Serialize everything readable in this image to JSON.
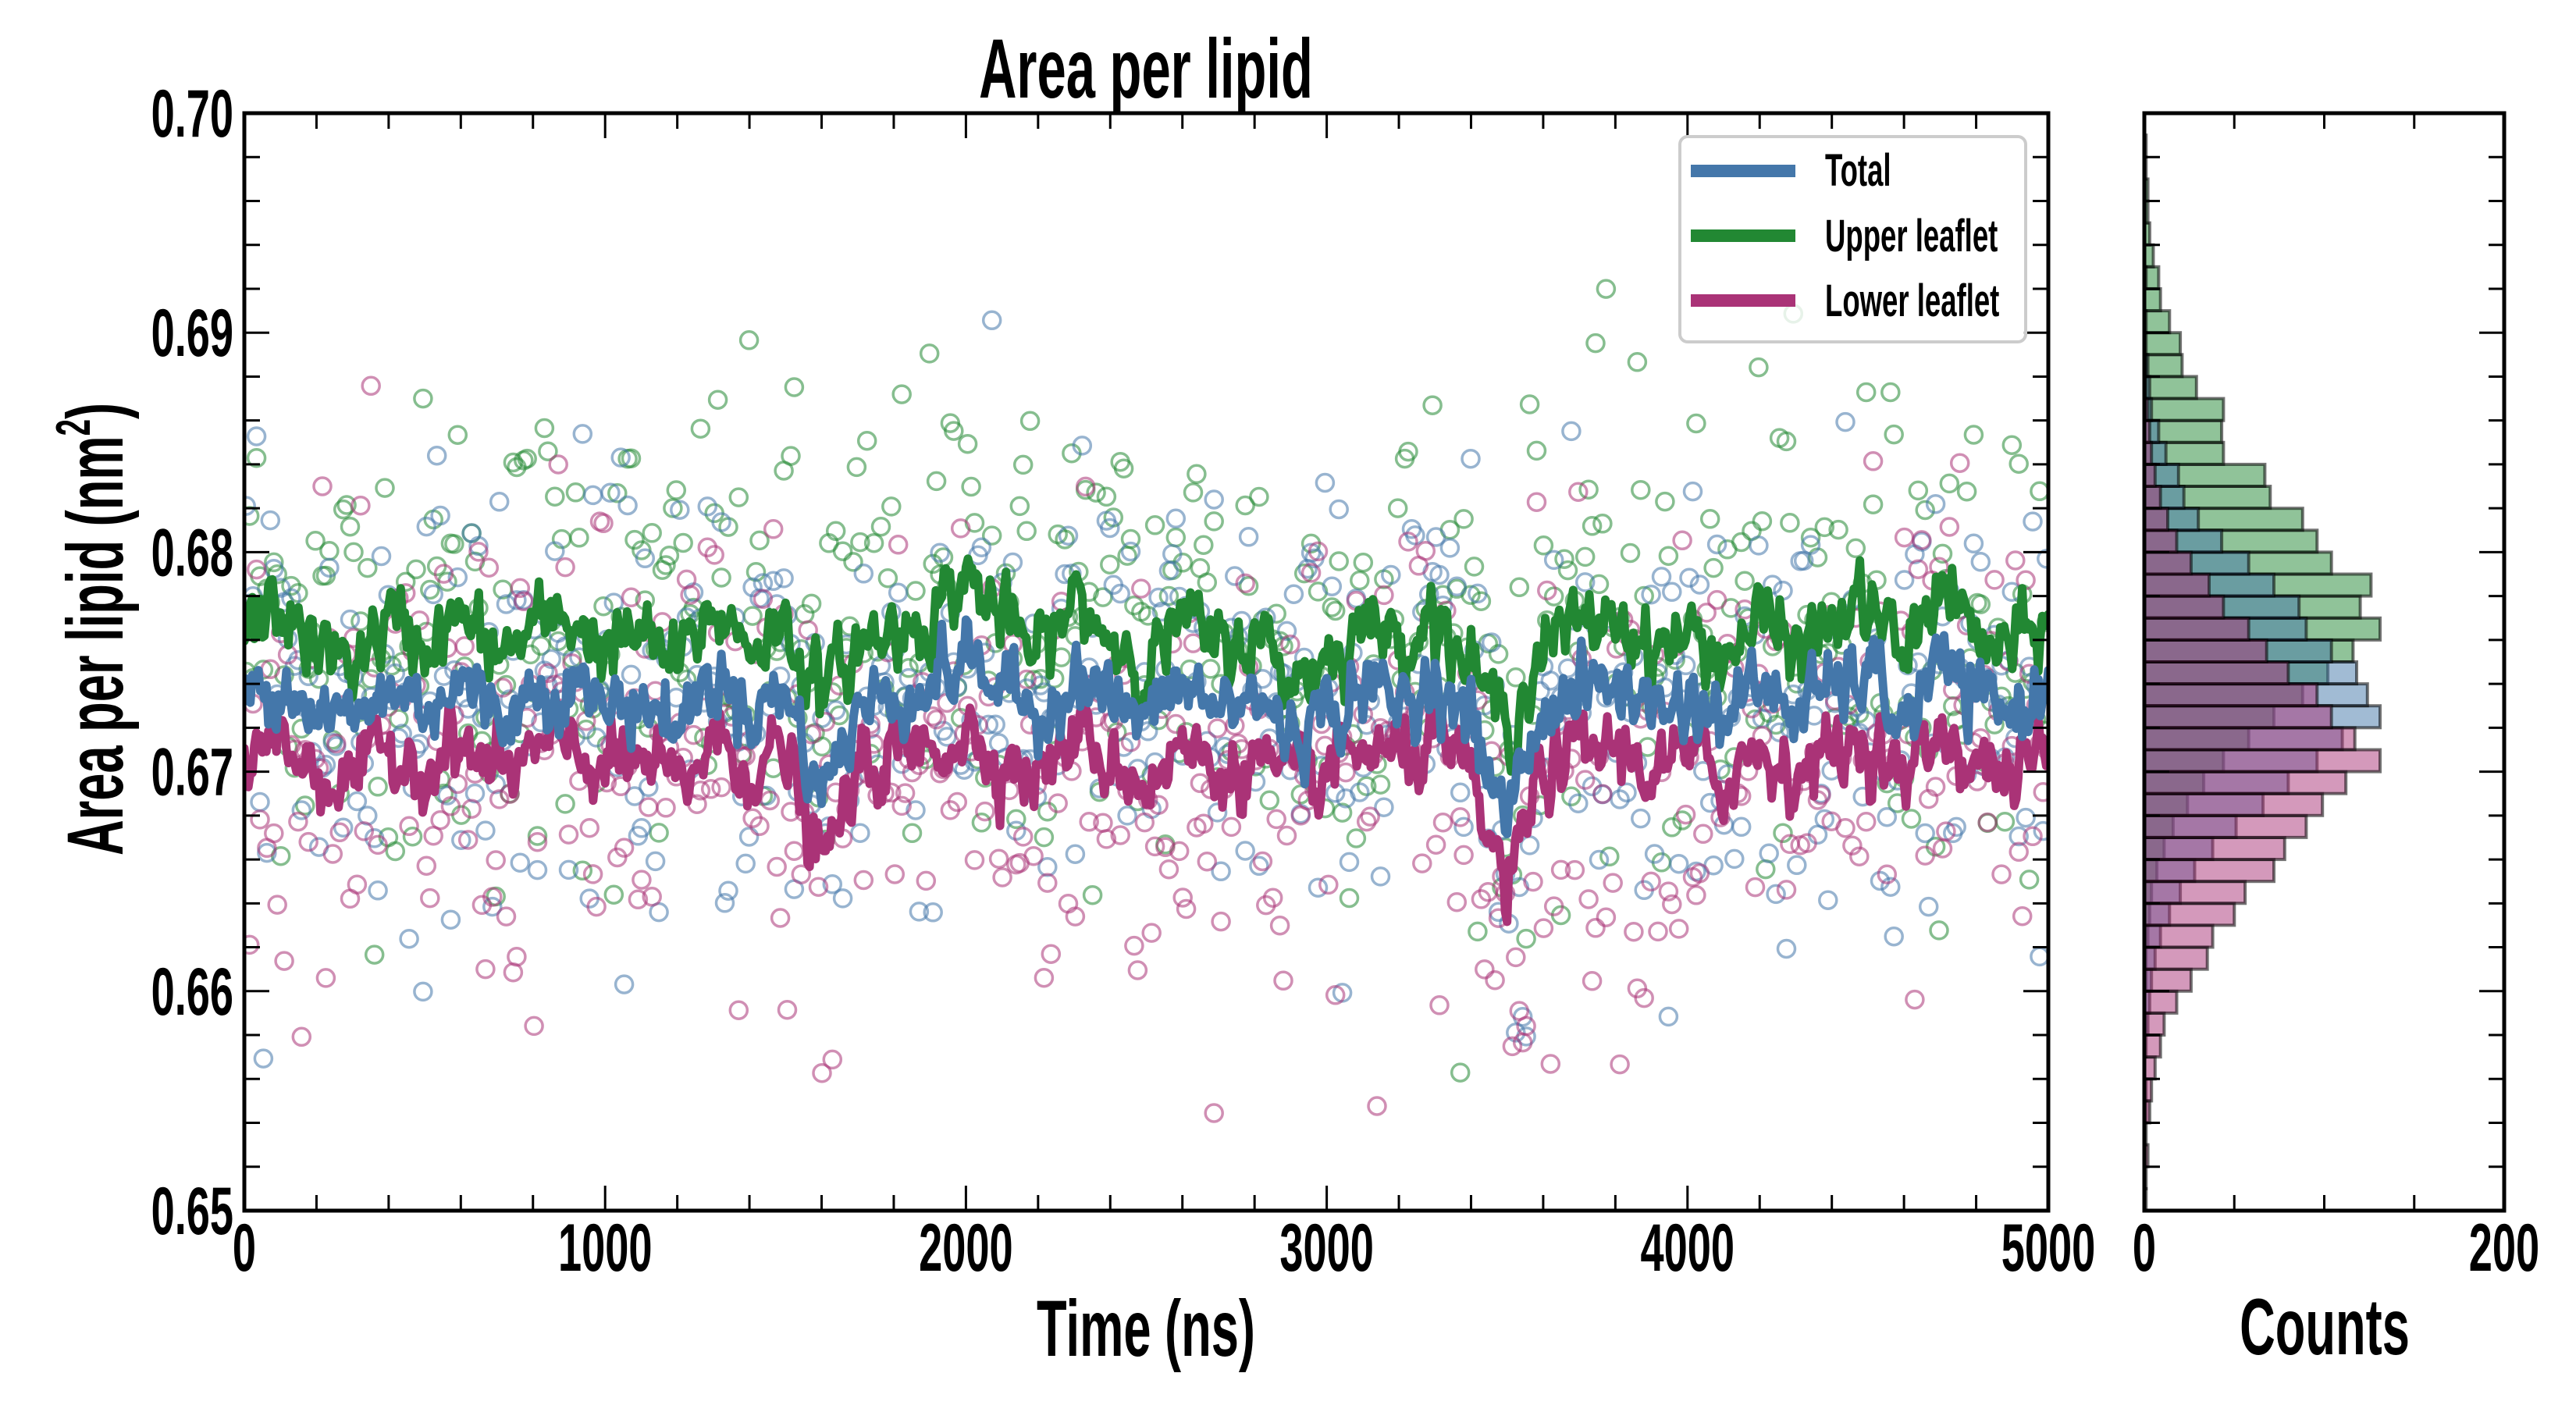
{
  "chart_data": [
    {
      "type": "line",
      "title": "Area per lipid",
      "xlabel": "Time (ns)",
      "ylabel": "Area per lipid (nm",
      "ylabel_superscript": "2",
      "ylabel_suffix": ")",
      "xlim": [
        0,
        5000
      ],
      "ylim": [
        0.65,
        0.7
      ],
      "x_major_ticks": [
        0,
        1000,
        2000,
        3000,
        4000,
        5000
      ],
      "x_tick_labels": [
        "0",
        "1000",
        "2000",
        "3000",
        "4000",
        "5000"
      ],
      "x_minor_step": 200,
      "y_major_ticks": [
        0.65,
        0.66,
        0.67,
        0.68,
        0.69,
        0.7
      ],
      "y_tick_labels": [
        "0.65",
        "0.66",
        "0.67",
        "0.68",
        "0.69",
        "0.70"
      ],
      "y_minor_step": 0.002,
      "grid": false,
      "legend": {
        "placement": "top-right",
        "entries": [
          "Total",
          "Upper leaflet",
          "Lower leaflet"
        ]
      },
      "x": [
        0,
        100,
        200,
        300,
        400,
        500,
        600,
        700,
        800,
        900,
        1000,
        1100,
        1200,
        1300,
        1400,
        1500,
        1600,
        1700,
        1800,
        1900,
        2000,
        2100,
        2200,
        2300,
        2400,
        2500,
        2600,
        2700,
        2800,
        2900,
        3000,
        3100,
        3200,
        3300,
        3400,
        3500,
        3600,
        3700,
        3800,
        3900,
        4000,
        4100,
        4200,
        4300,
        4400,
        4500,
        4600,
        4700,
        4800,
        4900,
        5000
      ],
      "series": [
        {
          "name": "Total",
          "color": "#4477aa",
          "values": [
            0.6732,
            0.6745,
            0.6728,
            0.6722,
            0.6738,
            0.6731,
            0.6741,
            0.6726,
            0.6735,
            0.6742,
            0.6729,
            0.6733,
            0.672,
            0.6744,
            0.673,
            0.6737,
            0.669,
            0.6728,
            0.6735,
            0.674,
            0.6752,
            0.6738,
            0.6725,
            0.6746,
            0.6733,
            0.6722,
            0.674,
            0.6728,
            0.6734,
            0.6718,
            0.6726,
            0.6739,
            0.6731,
            0.6744,
            0.672,
            0.668,
            0.673,
            0.6736,
            0.6741,
            0.6729,
            0.6733,
            0.6725,
            0.674,
            0.6728,
            0.6737,
            0.6745,
            0.6722,
            0.675,
            0.6731,
            0.6727,
            0.674
          ],
          "scatter_spread": 0.005
        },
        {
          "name": "Upper leaflet",
          "color": "#228833",
          "values": [
            0.6762,
            0.6775,
            0.6755,
            0.675,
            0.6768,
            0.6758,
            0.677,
            0.6752,
            0.6764,
            0.6772,
            0.6756,
            0.6762,
            0.6748,
            0.6774,
            0.6759,
            0.6766,
            0.6735,
            0.6757,
            0.6764,
            0.6771,
            0.679,
            0.677,
            0.6752,
            0.6778,
            0.6762,
            0.6748,
            0.677,
            0.6755,
            0.6763,
            0.6742,
            0.6752,
            0.6768,
            0.676,
            0.6774,
            0.6746,
            0.672,
            0.6758,
            0.6765,
            0.6772,
            0.6756,
            0.6762,
            0.6752,
            0.677,
            0.6755,
            0.6766,
            0.6778,
            0.675,
            0.6788,
            0.676,
            0.6754,
            0.6768
          ],
          "scatter_spread": 0.0055
        },
        {
          "name": "Lower leaflet",
          "color": "#aa3377",
          "values": [
            0.6705,
            0.6716,
            0.67,
            0.6694,
            0.671,
            0.6703,
            0.6712,
            0.6698,
            0.6707,
            0.6713,
            0.6701,
            0.6705,
            0.6692,
            0.6715,
            0.6702,
            0.6709,
            0.6655,
            0.67,
            0.6707,
            0.6711,
            0.6718,
            0.6707,
            0.6697,
            0.6716,
            0.6705,
            0.6695,
            0.6711,
            0.67,
            0.6706,
            0.6692,
            0.6699,
            0.6711,
            0.6703,
            0.6715,
            0.6693,
            0.6645,
            0.6702,
            0.6708,
            0.6712,
            0.6701,
            0.6705,
            0.6697,
            0.6711,
            0.67,
            0.6709,
            0.6716,
            0.6694,
            0.672,
            0.6703,
            0.6699,
            0.6712
          ],
          "scatter_spread": 0.0055
        }
      ]
    },
    {
      "type": "bar",
      "orientation": "horizontal",
      "xlabel": "Counts",
      "xlim": [
        0,
        200
      ],
      "x_major_ticks": [
        0,
        200
      ],
      "x_tick_labels": [
        "0",
        "200"
      ],
      "x_minor_step": 50,
      "ylim": [
        0.65,
        0.7
      ],
      "bin_start": 0.65,
      "bin_width": 0.001,
      "series": [
        {
          "name": "Upper leaflet",
          "color": "#228833",
          "counts": [
            0,
            0,
            0,
            0,
            0,
            0,
            0,
            0,
            0,
            0,
            1,
            1,
            2,
            3,
            4,
            7,
            11,
            16,
            24,
            33,
            44,
            58,
            72,
            88,
            102,
            116,
            131,
            120,
            126,
            104,
            96,
            88,
            70,
            67,
            44,
            43,
            44,
            29,
            21,
            20,
            14,
            9,
            8,
            5,
            3,
            2,
            2,
            1,
            1,
            0
          ]
        },
        {
          "name": "Total",
          "color": "#4477aa",
          "counts": [
            0,
            0,
            0,
            0,
            1,
            1,
            0,
            1,
            2,
            3,
            4,
            6,
            9,
            14,
            20,
            28,
            38,
            51,
            66,
            80,
            96,
            110,
            131,
            124,
            118,
            104,
            90,
            86,
            72,
            58,
            43,
            30,
            22,
            19,
            12,
            8,
            4,
            3,
            2,
            1,
            1,
            0,
            1,
            0,
            0,
            0,
            0,
            0,
            0,
            0
          ]
        },
        {
          "name": "Lower leaflet",
          "color": "#aa3377",
          "counts": [
            1,
            1,
            2,
            1,
            3,
            4,
            6,
            9,
            11,
            18,
            26,
            35,
            38,
            50,
            56,
            72,
            78,
            90,
            99,
            112,
            131,
            117,
            104,
            96,
            80,
            68,
            58,
            44,
            36,
            26,
            18,
            13,
            9,
            6,
            4,
            3,
            2,
            1,
            1,
            0,
            0,
            0,
            0,
            0,
            0,
            0,
            0,
            0,
            0,
            0
          ]
        }
      ]
    }
  ]
}
